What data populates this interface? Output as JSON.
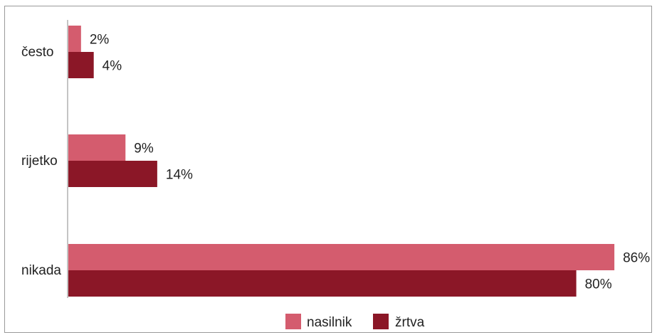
{
  "chart_data": {
    "type": "bar",
    "orientation": "horizontal",
    "categories": [
      "često",
      "rijetko",
      "nikada"
    ],
    "series": [
      {
        "name": "nasilnik",
        "values": [
          2,
          9,
          86
        ],
        "labels": [
          "2%",
          "9%",
          "86%"
        ],
        "color": "#d45c6e"
      },
      {
        "name": "žrtva",
        "values": [
          4,
          14,
          80
        ],
        "labels": [
          "4%",
          "14%",
          "80%"
        ],
        "color": "#8b1727"
      }
    ],
    "unit": "%",
    "xlim": [
      0,
      86
    ],
    "grid": false,
    "legend": "bottom-center"
  }
}
